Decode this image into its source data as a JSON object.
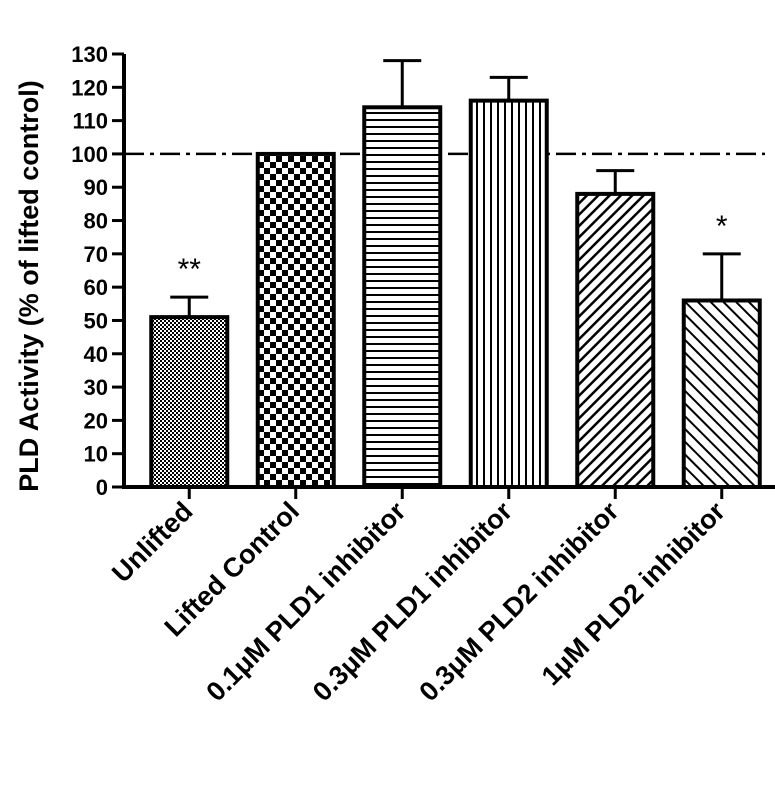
{
  "chart_data": {
    "type": "bar",
    "title": "",
    "xlabel": "",
    "ylabel": "PLD Activity (% of lifted control)",
    "ylim": [
      0,
      130
    ],
    "yticks": [
      0,
      10,
      20,
      30,
      40,
      50,
      60,
      70,
      80,
      90,
      100,
      110,
      120,
      130
    ],
    "categories": [
      "Unlifted",
      "Lifted Control",
      "0.1μM PLD1 inhibitor",
      "0.3μM PLD1 inhibitor",
      "0.3μM PLD2 inhibitor",
      "1μM PLD2 inhibitor"
    ],
    "values": [
      51,
      100,
      114,
      116,
      88,
      56
    ],
    "errors": [
      6,
      0,
      14,
      7,
      7,
      14
    ],
    "significance": [
      "**",
      "",
      "",
      "",
      "",
      "*"
    ],
    "patterns": [
      "dots",
      "checker",
      "horizontal-lines",
      "vertical-lines",
      "diagonal-right",
      "diagonal-left"
    ],
    "reference_line": {
      "y": 100,
      "style": "dash-dot"
    },
    "grid": false,
    "legend": "none",
    "colors": {
      "bar_stroke": "#000000",
      "fill": "#000000",
      "background": "#ffffff"
    }
  }
}
